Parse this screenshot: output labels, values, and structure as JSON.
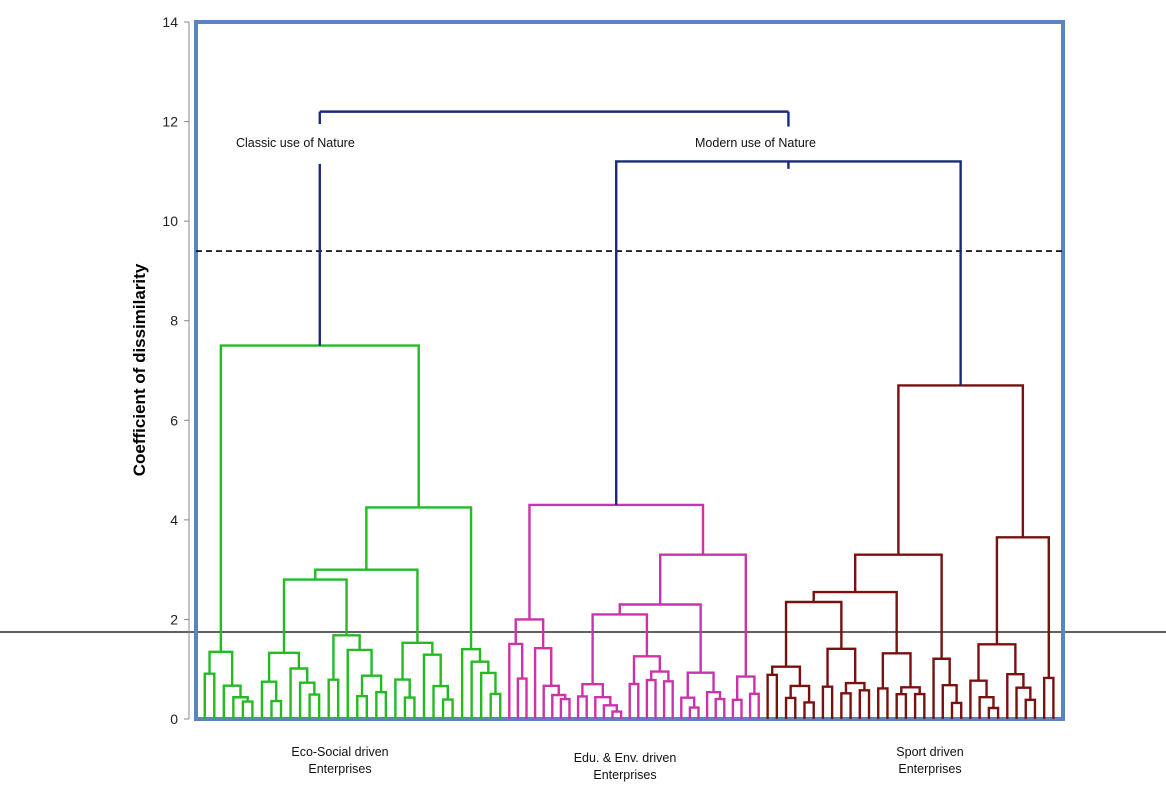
{
  "chart_data": {
    "type": "dendrogram",
    "ylabel": "Coefficient of dissimilarity",
    "ylim": [
      0,
      14
    ],
    "yticks": [
      0,
      2,
      4,
      6,
      8,
      10,
      12,
      14
    ],
    "cut_line": 9.4,
    "root_height": 12.2,
    "modern_height": 11.2,
    "annotations": [
      {
        "text": "Classic use of Nature"
      },
      {
        "text": "Modern use of Nature"
      }
    ],
    "clusters": [
      {
        "name": "Eco-Social driven Enterprises",
        "label_lines": [
          "Eco-Social driven",
          "Enterprises"
        ],
        "color": "#22bb22",
        "height": 7.5,
        "subclusters": [
          {
            "height": 1.35,
            "n": 6
          },
          {
            "height": 4.25,
            "n": 26,
            "sub_heights": [
              1.9,
              2.8,
              2.55
            ]
          }
        ]
      },
      {
        "name": "Edu. & Env. driven Enterprises",
        "label_lines": [
          "Edu. & Env. driven",
          "Enterprises"
        ],
        "color": "#cc33aa",
        "height": 4.3,
        "subclusters": [
          {
            "height": 2.0,
            "n": 8
          },
          {
            "height": 3.3,
            "n": 22,
            "sub_heights": [
              1.0,
              2.1,
              1.55
            ]
          }
        ]
      },
      {
        "name": "Sport driven Enterprises",
        "label_lines": [
          "Sport  driven",
          "Enterprises"
        ],
        "color": "#7a1010",
        "height": 6.7,
        "subclusters": [
          {
            "height": 3.3,
            "n": 22,
            "sub_heights": [
              1.5,
              2.35,
              2.2
            ]
          },
          {
            "height": 3.65,
            "n": 10,
            "sub_heights": [
              1.1,
              1.5
            ]
          }
        ]
      }
    ],
    "link_color": "#1a2a7a",
    "frame_color": "#5b85c0"
  }
}
